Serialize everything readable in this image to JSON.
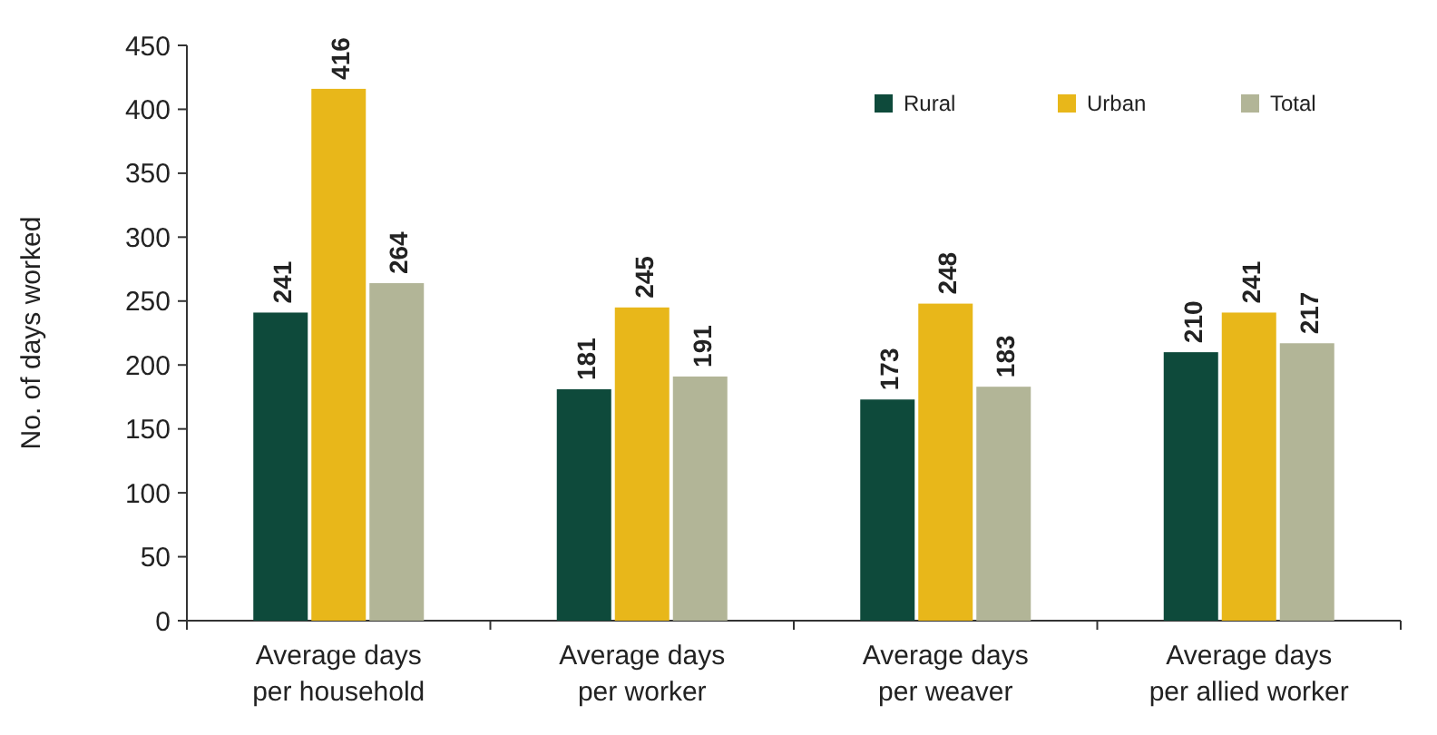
{
  "chart_data": {
    "type": "bar",
    "ylabel": "No. of days worked",
    "categories": [
      "Average days\nper household",
      "Average days\nper worker",
      "Average days\nper weaver",
      "Average days\nper allied worker"
    ],
    "series": [
      {
        "name": "Rural",
        "color": "#0e4a3b",
        "values": [
          241,
          181,
          173,
          210
        ]
      },
      {
        "name": "Urban",
        "color": "#e8b71a",
        "values": [
          416,
          245,
          248,
          241
        ]
      },
      {
        "name": "Total",
        "color": "#b2b597",
        "values": [
          264,
          191,
          183,
          217
        ]
      }
    ],
    "ylim": [
      0,
      450
    ],
    "yticks": [
      0,
      50,
      100,
      150,
      200,
      250,
      300,
      350,
      400,
      450
    ],
    "grid": false,
    "legend": "top right",
    "data_labels": true
  }
}
